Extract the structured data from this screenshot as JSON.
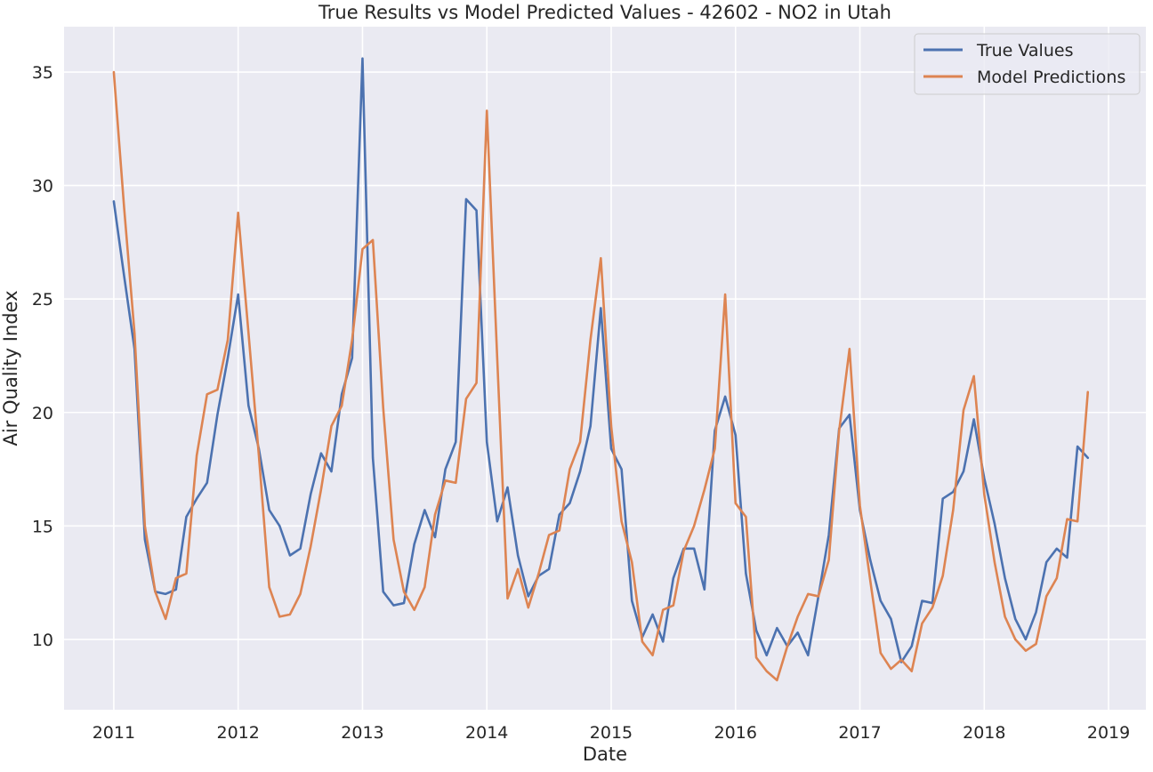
{
  "chart_data": {
    "type": "line",
    "title": "True Results vs Model Predicted Values - 42602 - NO2 in Utah",
    "xlabel": "Date",
    "ylabel": "Air Quality Index",
    "x_ticks": [
      "2011",
      "2012",
      "2013",
      "2014",
      "2015",
      "2016",
      "2017",
      "2018",
      "2019"
    ],
    "y_ticks": [
      "10",
      "15",
      "20",
      "25",
      "30",
      "35"
    ],
    "xlim": [
      2010.6,
      2019.3
    ],
    "ylim": [
      6.9,
      37
    ],
    "grid": true,
    "legend": "top-right",
    "x_start": "2011-01",
    "x_step": "monthly",
    "series": [
      {
        "name": "True Values",
        "color": "#4c72b0",
        "values": [
          29.3,
          26.0,
          22.8,
          14.4,
          12.1,
          12.0,
          12.2,
          15.4,
          16.2,
          16.9,
          19.9,
          22.4,
          25.2,
          20.3,
          18.4,
          15.7,
          15.0,
          13.7,
          14.0,
          16.4,
          18.2,
          17.4,
          20.8,
          22.4,
          35.6,
          18.0,
          12.1,
          11.5,
          11.6,
          14.2,
          15.7,
          14.5,
          17.5,
          18.7,
          29.4,
          28.9,
          18.7,
          15.2,
          16.7,
          13.7,
          11.9,
          12.8,
          13.1,
          15.5,
          16.0,
          17.4,
          19.4,
          24.6,
          18.4,
          17.5,
          11.7,
          10.1,
          11.1,
          9.9,
          12.7,
          14.0,
          14.0,
          12.2,
          19.2,
          20.7,
          19.0,
          12.9,
          10.4,
          9.3,
          10.5,
          9.7,
          10.3,
          9.3,
          11.9,
          14.6,
          19.3,
          19.9,
          15.7,
          13.5,
          11.7,
          10.9,
          9.0,
          9.7,
          11.7,
          11.6,
          16.2,
          16.5,
          17.4,
          19.7,
          17.1,
          15.1,
          12.7,
          10.9,
          10.0,
          11.2,
          13.4,
          14.0,
          13.6,
          18.5,
          18.0
        ]
      },
      {
        "name": "Model Predictions",
        "color": "#dd8452",
        "values": [
          35.0,
          29.0,
          23.5,
          15.0,
          12.1,
          10.9,
          12.7,
          12.9,
          18.1,
          20.8,
          21.0,
          23.2,
          28.8,
          23.5,
          18.1,
          12.3,
          11.0,
          11.1,
          12.0,
          14.1,
          16.6,
          19.4,
          20.3,
          23.2,
          27.2,
          27.6,
          20.2,
          14.4,
          12.1,
          11.3,
          12.3,
          15.5,
          17.0,
          16.9,
          20.6,
          21.3,
          33.3,
          22.4,
          11.8,
          13.1,
          11.4,
          12.9,
          14.6,
          14.8,
          17.5,
          18.7,
          23.2,
          26.8,
          19.4,
          15.2,
          13.4,
          9.9,
          9.3,
          11.3,
          11.5,
          13.9,
          15.0,
          16.6,
          18.4,
          25.2,
          16.0,
          15.4,
          9.2,
          8.6,
          8.2,
          9.7,
          11.0,
          12.0,
          11.9,
          13.5,
          19.2,
          22.8,
          15.9,
          12.6,
          9.4,
          8.7,
          9.1,
          8.6,
          10.7,
          11.4,
          12.8,
          15.7,
          20.1,
          21.6,
          16.4,
          13.4,
          11.0,
          10.0,
          9.5,
          9.8,
          11.9,
          12.7,
          15.3,
          15.2,
          20.9
        ]
      }
    ]
  }
}
